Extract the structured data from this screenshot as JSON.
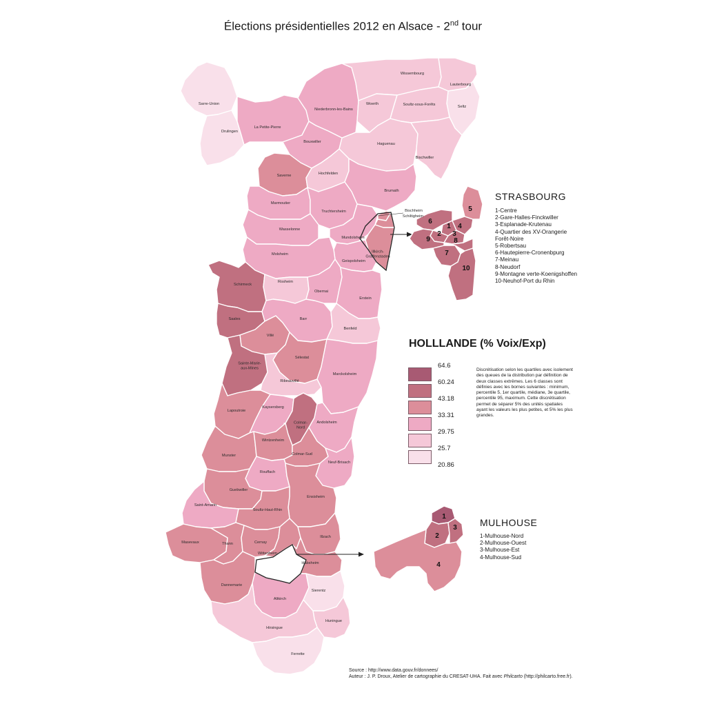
{
  "title": {
    "main": "Élections présidentielles 2012 en Alsace - 2",
    "sup": "nd",
    "rest": " tour"
  },
  "legend": {
    "title": "HOLLLANDE (% Voix/Exp)",
    "breaks": [
      "64.6",
      "60.24",
      "43.18",
      "33.31",
      "29.75",
      "25.7",
      "20.86"
    ],
    "colors": [
      "#a85a73",
      "#c07080",
      "#dc8e9a",
      "#eeaac4",
      "#f5c8d8",
      "#f9e0ea"
    ],
    "note": "Discrétisation selon les quartiles avec isolement des queues de la distribution par définition de deux classes extrêmes. Les 6 classes sont définies avec les bornes suivantes : minimum, percentile 5, 1er quartile, médiane, 3e quartile, percentile 95, maximum. Cette discrétisation permet de séparer 5% des unités spatiales ayant les valeurs les plus petites, et 5% les plus grandes."
  },
  "strasbourg": {
    "title": "STRASBOURG",
    "items": [
      "1-Centre",
      "2-Gare-Halles-Finckwiller",
      "3-Esplanade-Krutenau",
      "4-Quartier des XV-Orangerie",
      "Forêt-Noire",
      "5-Robertsau",
      "6-Hautepierre-Cronenbpurg",
      "7-Meinau",
      "8-Neudorf",
      "9-Montagne verte-Koenigshoffen",
      "10-Neuhof-Port du Rhin"
    ]
  },
  "mulhouse": {
    "title": "MULHOUSE",
    "items": [
      "1-Mulhouse-Nord",
      "2-Mulhouse-Ouest",
      "3-Mulhouse-Est",
      "4-Mulhouse-Sud"
    ]
  },
  "source": {
    "line1": "Source : http://www.data.gouv.fr/donnees/",
    "line2_a": "Auteur : J. P. Droux, Atelier de cartographie du CRESAT-UHA. Fait avec ",
    "line2_i": "Philcarto",
    "line2_b": " (http://philcarto.free.fr)."
  },
  "cantons": [
    {
      "name": "Sarre-Union",
      "cls": 5
    },
    {
      "name": "Drulingen",
      "cls": 5
    },
    {
      "name": "La Petite-Pierre",
      "cls": 3
    },
    {
      "name": "Niederbronn-les-Bains",
      "cls": 3
    },
    {
      "name": "Wissembourg",
      "cls": 4
    },
    {
      "name": "Lauterbourg",
      "cls": 4
    },
    {
      "name": "Seltz",
      "cls": 5
    },
    {
      "name": "Woerth",
      "cls": 4
    },
    {
      "name": "Soultz-sous-Forêts",
      "cls": 4
    },
    {
      "name": "Bouxwiller",
      "cls": 3
    },
    {
      "name": "Haguenau",
      "cls": 4
    },
    {
      "name": "Bischwiller",
      "cls": 4
    },
    {
      "name": "Saverne",
      "cls": 2
    },
    {
      "name": "Hochfelden",
      "cls": 4
    },
    {
      "name": "Brumath",
      "cls": 3
    },
    {
      "name": "Marmoutier",
      "cls": 3
    },
    {
      "name": "Truchtersheim",
      "cls": 3
    },
    {
      "name": "Wasselonne",
      "cls": 3
    },
    {
      "name": "Bischheim",
      "cls": 2
    },
    {
      "name": "Schiltigheim",
      "cls": 2
    },
    {
      "name": "Mundolsheim",
      "cls": 3
    },
    {
      "name": "Illkirch-Graffenstaden",
      "cls": 2
    },
    {
      "name": "Geispolsheim",
      "cls": 3
    },
    {
      "name": "Molsheim",
      "cls": 3
    },
    {
      "name": "Schirmeck",
      "cls": 1
    },
    {
      "name": "Rosheim",
      "cls": 4
    },
    {
      "name": "Obernai",
      "cls": 3
    },
    {
      "name": "Erstein",
      "cls": 3
    },
    {
      "name": "Saales",
      "cls": 1
    },
    {
      "name": "Barr",
      "cls": 3
    },
    {
      "name": "Benfeld",
      "cls": 4
    },
    {
      "name": "Villé",
      "cls": 2
    },
    {
      "name": "Sainte-Marie-aux-Mines",
      "cls": 1
    },
    {
      "name": "Sélestat",
      "cls": 2
    },
    {
      "name": "Marckolsheim",
      "cls": 3
    },
    {
      "name": "Ribeauvillé",
      "cls": 4
    },
    {
      "name": "Lapoutroie",
      "cls": 2
    },
    {
      "name": "Kaysersberg",
      "cls": 3
    },
    {
      "name": "Colmar-Nord",
      "cls": 1
    },
    {
      "name": "Andolsheim",
      "cls": 3
    },
    {
      "name": "Munster",
      "cls": 2
    },
    {
      "name": "Wintzenheim",
      "cls": 2
    },
    {
      "name": "Colmar-Sud",
      "cls": 2
    },
    {
      "name": "Neuf-Brisach",
      "cls": 3
    },
    {
      "name": "Rouffach",
      "cls": 3
    },
    {
      "name": "Guebwiller",
      "cls": 2
    },
    {
      "name": "Ensisheim",
      "cls": 2
    },
    {
      "name": "Saint-Amarin",
      "cls": 3
    },
    {
      "name": "Soultz-Haut-Rhin",
      "cls": 2
    },
    {
      "name": "Masevaux",
      "cls": 2
    },
    {
      "name": "Thann",
      "cls": 2
    },
    {
      "name": "Cernay",
      "cls": 2
    },
    {
      "name": "Wittenheim",
      "cls": 2
    },
    {
      "name": "Illzach",
      "cls": 2
    },
    {
      "name": "Habsheim",
      "cls": 2
    },
    {
      "name": "Dannemarie",
      "cls": 2
    },
    {
      "name": "Altkirch",
      "cls": 3
    },
    {
      "name": "Sierentz",
      "cls": 5
    },
    {
      "name": "Huningue",
      "cls": 4
    },
    {
      "name": "Hirsingue",
      "cls": 4
    },
    {
      "name": "Ferrette",
      "cls": 5
    }
  ],
  "strasbourg_parts": [
    {
      "num": "1",
      "cls": 1
    },
    {
      "num": "2",
      "cls": 1
    },
    {
      "num": "3",
      "cls": 1
    },
    {
      "num": "4",
      "cls": 1
    },
    {
      "num": "5",
      "cls": 2
    },
    {
      "num": "6",
      "cls": 1
    },
    {
      "num": "7",
      "cls": 1
    },
    {
      "num": "8",
      "cls": 1
    },
    {
      "num": "9",
      "cls": 1
    },
    {
      "num": "10",
      "cls": 1
    }
  ],
  "mulhouse_parts": [
    {
      "num": "1",
      "cls": 0
    },
    {
      "num": "2",
      "cls": 1
    },
    {
      "num": "3",
      "cls": 1
    },
    {
      "num": "4",
      "cls": 2
    }
  ]
}
